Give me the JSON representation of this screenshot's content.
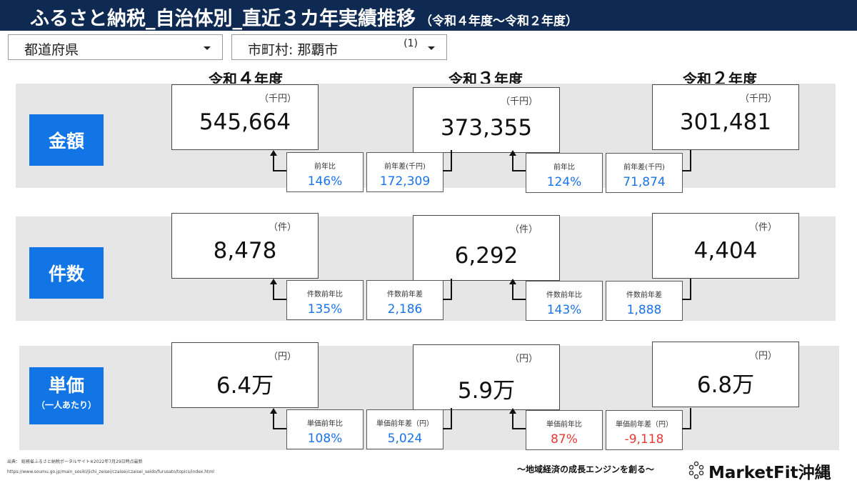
{
  "header": {
    "title": "ふるさと納税_自治体別_直近３カ年実績推移",
    "subtitle": "（令和４年度～令和２年度）"
  },
  "filters": {
    "prefecture": {
      "label": "都道府県"
    },
    "city": {
      "label": "市町村: 那覇市",
      "count": "(1)"
    }
  },
  "columns": [
    {
      "prefix": "令和",
      "num": "４",
      "suffix": "年度"
    },
    {
      "prefix": "令和",
      "num": "３",
      "suffix": "年度"
    },
    {
      "prefix": "令和",
      "num": "２",
      "suffix": "年度"
    }
  ],
  "rows": {
    "amount": {
      "label": "金額",
      "unit": "（千円）",
      "values": [
        "545,664",
        "373,355",
        "301,481"
      ],
      "stats": [
        {
          "label": "前年比",
          "value": "146%"
        },
        {
          "label": "前年差(千円)",
          "value": "172,309"
        },
        {
          "label": "前年比",
          "value": "124%"
        },
        {
          "label": "前年差(千円)",
          "value": "71,874"
        }
      ]
    },
    "count": {
      "label": "件数",
      "unit": "（件）",
      "values": [
        "8,478",
        "6,292",
        "4,404"
      ],
      "stats": [
        {
          "label": "件数前年比",
          "value": "135%"
        },
        {
          "label": "件数前年差",
          "value": "2,186"
        },
        {
          "label": "件数前年比",
          "value": "143%"
        },
        {
          "label": "件数前年差",
          "value": "1,888"
        }
      ]
    },
    "unit_price": {
      "label": "単価",
      "sublabel": "（一人あたり）",
      "unit": "（円）",
      "values": [
        "6.4万",
        "5.9万",
        "6.8万"
      ],
      "stats": [
        {
          "label": "単価前年比",
          "value": "108%"
        },
        {
          "label": "単価前年差（円）",
          "value": "5,024"
        },
        {
          "label": "単価前年比",
          "value": "87%"
        },
        {
          "label": "単価前年差（円）",
          "value": "-9,118"
        }
      ]
    }
  },
  "colors": {
    "header_bg": "#0f2a52",
    "label_bg": "#1275e6",
    "positive": "#1a73e8",
    "negative": "#e53935",
    "band": "#e6e6e6"
  },
  "footer": {
    "source": "出典： 総務省ふるさと納税ポータルサイト※2022年7月29日時点最新",
    "url": "https://www.soumu.go.jp/main_sosiki/jichi_zeisei/czaisei/czaisei_seido/furusato/topics/index.html",
    "tagline": "～地域経済の成長エンジンを創る～",
    "brand": "MarketFit沖縄",
    "brand_icon": "dots-logo-icon"
  }
}
